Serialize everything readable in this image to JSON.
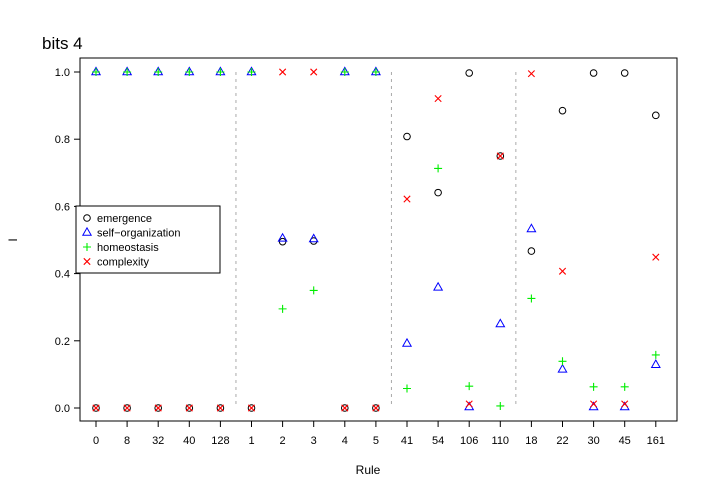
{
  "chart_data": {
    "type": "scatter",
    "title": "bits  4",
    "xlabel": "Rule",
    "ylabel": "I",
    "categories": [
      "0",
      "8",
      "32",
      "40",
      "128",
      "1",
      "2",
      "3",
      "4",
      "5",
      "41",
      "54",
      "106",
      "110",
      "18",
      "22",
      "30",
      "45",
      "161"
    ],
    "ylim": [
      0,
      1
    ],
    "yticks": [
      "0.0",
      "0.2",
      "0.4",
      "0.6",
      "0.8",
      "1.0"
    ],
    "group_separators_after_index": [
      4,
      9,
      13
    ],
    "grid": false,
    "legend_position": "left",
    "series": [
      {
        "name": "emergence",
        "marker": "circle",
        "color": "#000000",
        "values": [
          0,
          0,
          0,
          0,
          0,
          0,
          0.495,
          0.497,
          0,
          0,
          0.808,
          0.641,
          0.997,
          0.75,
          0.467,
          0.885,
          0.997,
          0.997,
          0.871
        ]
      },
      {
        "name": "self−organization",
        "marker": "triangle",
        "color": "#0000ff",
        "values": [
          1,
          1,
          1,
          1,
          1,
          1,
          0.505,
          0.503,
          1,
          1,
          0.192,
          0.359,
          0.003,
          0.25,
          0.533,
          0.115,
          0.003,
          0.003,
          0.129
        ]
      },
      {
        "name": "homeostasis",
        "marker": "plus",
        "color": "#00ee00",
        "values": [
          1,
          1,
          1,
          1,
          1,
          1,
          0.295,
          0.35,
          1,
          1,
          0.058,
          0.713,
          0.065,
          0.006,
          0.326,
          0.139,
          0.063,
          0.063,
          0.158
        ]
      },
      {
        "name": "complexity",
        "marker": "cross",
        "color": "#ff0000",
        "values": [
          0,
          0,
          0,
          0,
          0,
          0,
          1,
          1,
          0,
          0,
          0.622,
          0.921,
          0.012,
          0.75,
          0.995,
          0.407,
          0.012,
          0.012,
          0.449
        ]
      }
    ]
  }
}
